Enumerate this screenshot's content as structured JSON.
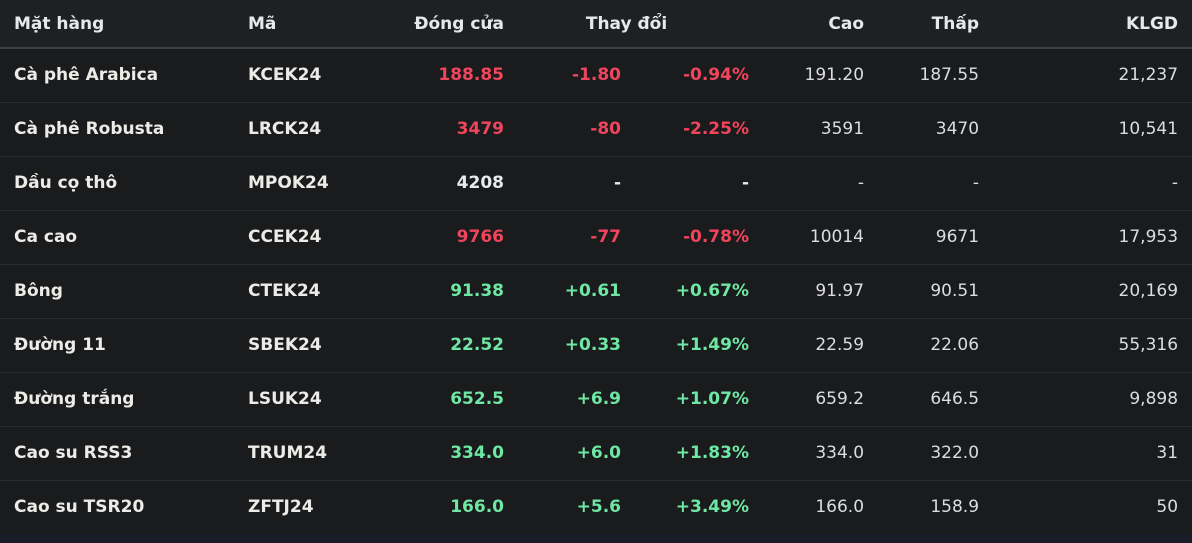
{
  "colors": {
    "up": "#6fe7a4",
    "down": "#f0455c",
    "neutral": "#e9eaec",
    "row_bg": "#1a1b1d",
    "header_bg": "#1e2022"
  },
  "table": {
    "columns": [
      {
        "key": "name",
        "label": "Mặt hàng"
      },
      {
        "key": "code",
        "label": "Mã"
      },
      {
        "key": "close",
        "label": "Đóng cửa"
      },
      {
        "key": "change",
        "label": "Thay đổi"
      },
      {
        "key": "high",
        "label": "Cao"
      },
      {
        "key": "low",
        "label": "Thấp"
      },
      {
        "key": "volume",
        "label": "KLGD"
      }
    ],
    "rows": [
      {
        "name": "Cà phê Arabica",
        "code": "KCEK24",
        "close": "188.85",
        "change": "-1.80",
        "change_pct": "-0.94%",
        "high": "191.20",
        "low": "187.55",
        "volume": "21,237",
        "trend": "down"
      },
      {
        "name": "Cà phê Robusta",
        "code": "LRCK24",
        "close": "3479",
        "change": "-80",
        "change_pct": "-2.25%",
        "high": "3591",
        "low": "3470",
        "volume": "10,541",
        "trend": "down"
      },
      {
        "name": "Dầu cọ thô",
        "code": "MPOK24",
        "close": "4208",
        "change": "-",
        "change_pct": "-",
        "high": "-",
        "low": "-",
        "volume": "-",
        "trend": "neutral"
      },
      {
        "name": "Ca cao",
        "code": "CCEK24",
        "close": "9766",
        "change": "-77",
        "change_pct": "-0.78%",
        "high": "10014",
        "low": "9671",
        "volume": "17,953",
        "trend": "down"
      },
      {
        "name": "Bông",
        "code": "CTEK24",
        "close": "91.38",
        "change": "+0.61",
        "change_pct": "+0.67%",
        "high": "91.97",
        "low": "90.51",
        "volume": "20,169",
        "trend": "up"
      },
      {
        "name": "Đường 11",
        "code": "SBEK24",
        "close": "22.52",
        "change": "+0.33",
        "change_pct": "+1.49%",
        "high": "22.59",
        "low": "22.06",
        "volume": "55,316",
        "trend": "up"
      },
      {
        "name": "Đường trắng",
        "code": "LSUK24",
        "close": "652.5",
        "change": "+6.9",
        "change_pct": "+1.07%",
        "high": "659.2",
        "low": "646.5",
        "volume": "9,898",
        "trend": "up"
      },
      {
        "name": "Cao su RSS3",
        "code": "TRUM24",
        "close": "334.0",
        "change": "+6.0",
        "change_pct": "+1.83%",
        "high": "334.0",
        "low": "322.0",
        "volume": "31",
        "trend": "up"
      },
      {
        "name": "Cao su TSR20",
        "code": "ZFTJ24",
        "close": "166.0",
        "change": "+5.6",
        "change_pct": "+3.49%",
        "high": "166.0",
        "low": "158.9",
        "volume": "50",
        "trend": "up"
      }
    ]
  },
  "chart_data": {
    "type": "table",
    "columns": [
      "Mặt hàng",
      "Mã",
      "Đóng cửa",
      "Thay đổi",
      "Thay đổi %",
      "Cao",
      "Thấp",
      "KLGD"
    ],
    "rows": [
      [
        "Cà phê Arabica",
        "KCEK24",
        188.85,
        -1.8,
        "-0.94%",
        191.2,
        187.55,
        21237
      ],
      [
        "Cà phê Robusta",
        "LRCK24",
        3479,
        -80,
        "-2.25%",
        3591,
        3470,
        10541
      ],
      [
        "Dầu cọ thô",
        "MPOK24",
        4208,
        null,
        null,
        null,
        null,
        null
      ],
      [
        "Ca cao",
        "CCEK24",
        9766,
        -77,
        "-0.78%",
        10014,
        9671,
        17953
      ],
      [
        "Bông",
        "CTEK24",
        91.38,
        0.61,
        "+0.67%",
        91.97,
        90.51,
        20169
      ],
      [
        "Đường 11",
        "SBEK24",
        22.52,
        0.33,
        "+1.49%",
        22.59,
        22.06,
        55316
      ],
      [
        "Đường trắng",
        "LSUK24",
        652.5,
        6.9,
        "+1.07%",
        659.2,
        646.5,
        9898
      ],
      [
        "Cao su RSS3",
        "TRUM24",
        334.0,
        6.0,
        "+1.83%",
        334.0,
        322.0,
        31
      ],
      [
        "Cao su TSR20",
        "ZFTJ24",
        166.0,
        5.6,
        "+3.49%",
        166.0,
        158.9,
        50
      ]
    ]
  }
}
